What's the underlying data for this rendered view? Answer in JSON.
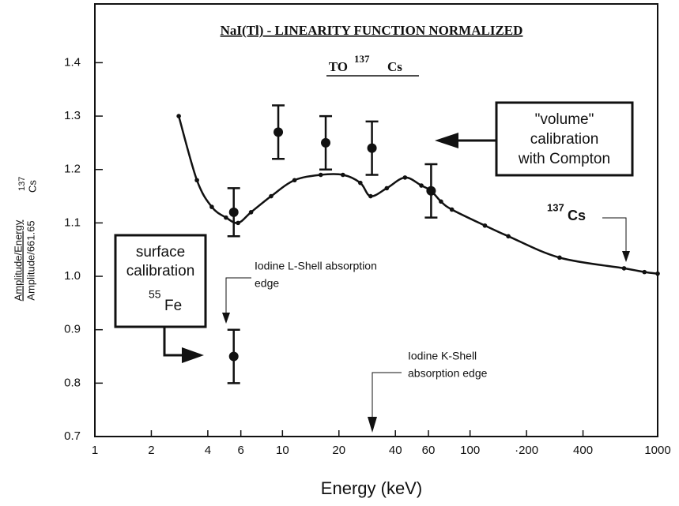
{
  "chart_data": {
    "type": "scatter",
    "title": "NaI(Tl) - LINEARITY FUNCTION NORMALIZED",
    "subtitle": {
      "text": "TO",
      "sup": "137",
      "after": "Cs"
    },
    "x_label": "Energy (keV)",
    "y_label": {
      "top": "Amplitude/Energy",
      "bottom": "Amplitude/661.65",
      "sup": "137",
      "after": "Cs"
    },
    "x_scale": "log",
    "xlim": [
      1,
      1000
    ],
    "xticks": [
      1,
      2,
      4,
      6,
      10,
      20,
      40,
      60,
      100,
      {
        "value": 200,
        "label": "·200"
      },
      400,
      1000
    ],
    "ylim": [
      0.7,
      1.51
    ],
    "yticks": [
      0.7,
      0.8,
      0.9,
      1.0,
      1.1,
      1.2,
      1.3,
      1.4
    ],
    "curve": {
      "color": "#111",
      "x": [
        2.8,
        3.5,
        4.2,
        5,
        5.8,
        6.8,
        8.7,
        11.6,
        16,
        21,
        26,
        29.5,
        36,
        45,
        55,
        62,
        70,
        80,
        120,
        160,
        300,
        662,
        850,
        1000
      ],
      "values": [
        1.3,
        1.18,
        1.13,
        1.11,
        1.1,
        1.12,
        1.15,
        1.18,
        1.19,
        1.19,
        1.175,
        1.15,
        1.165,
        1.185,
        1.17,
        1.16,
        1.14,
        1.125,
        1.095,
        1.075,
        1.035,
        1.015,
        1.008,
        1.005
      ]
    },
    "measurements": {
      "color": "#111",
      "x": [
        5.5,
        9.5,
        17,
        30,
        62,
        5.5
      ],
      "values": [
        1.12,
        1.27,
        1.25,
        1.24,
        1.16,
        0.85
      ],
      "errors": [
        0.045,
        0.05,
        0.05,
        0.05,
        0.05,
        0.05
      ]
    },
    "annotations": {
      "volume": [
        "\"volume\"",
        "calibration",
        "with Compton"
      ],
      "surface": {
        "lines": [
          "surface",
          "calibration"
        ],
        "sup": "55",
        "after": "Fe"
      },
      "l_edge": [
        "Iodine L-Shell absorption",
        "edge"
      ],
      "k_edge": [
        "Iodine K-Shell",
        "absorption edge"
      ],
      "cs": {
        "sup": "137",
        "after": "Cs"
      }
    }
  }
}
